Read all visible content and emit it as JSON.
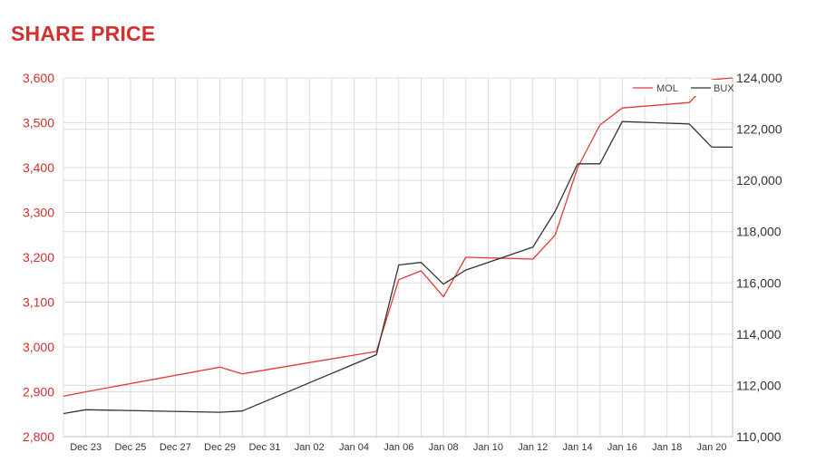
{
  "header": {
    "title": "SHARE PRICE"
  },
  "colors": {
    "title": "#d32f2f",
    "mol": "#e53935",
    "bux": "#333333"
  },
  "chart_data": {
    "type": "line",
    "title": "SHARE PRICE",
    "grid": true,
    "legend_placement": "top-right",
    "x_ticks": [
      "Dec 23",
      "Dec 25",
      "Dec 27",
      "Dec 29",
      "Dec 31",
      "Jan 02",
      "Jan 04",
      "Jan 06",
      "Jan 08",
      "Jan 10",
      "Jan 12",
      "Jan 14",
      "Jan 16",
      "Jan 18",
      "Jan 20"
    ],
    "x_range": [
      "2021-12-22",
      "2022-01-20"
    ],
    "y_left": {
      "range": [
        2800,
        3600
      ],
      "ticks": [
        "2,800",
        "2,900",
        "3,000",
        "3,100",
        "3,200",
        "3,300",
        "3,400",
        "3,500",
        "3,600"
      ]
    },
    "y_right": {
      "range": [
        110000,
        124000
      ],
      "ticks": [
        "110,000",
        "112,000",
        "114,000",
        "116,000",
        "118,000",
        "120,000",
        "122,000",
        "124,000"
      ]
    },
    "series": [
      {
        "name": "MOL",
        "axis": "left",
        "x": [
          "2021-12-22",
          "2021-12-23",
          "2021-12-29",
          "2021-12-30",
          "2022-01-05",
          "2022-01-06",
          "2022-01-07",
          "2022-01-08",
          "2022-01-09",
          "2022-01-12",
          "2022-01-13",
          "2022-01-14",
          "2022-01-15",
          "2022-01-16",
          "2022-01-19",
          "2022-01-20"
        ],
        "values": [
          2890,
          2900,
          2955,
          2940,
          2990,
          3150,
          3170,
          3112,
          3200,
          3196,
          3250,
          3400,
          3495,
          3533,
          3545,
          3596
        ]
      },
      {
        "name": "BUX",
        "axis": "right",
        "x": [
          "2021-12-22",
          "2021-12-23",
          "2021-12-29",
          "2021-12-30",
          "2022-01-05",
          "2022-01-06",
          "2022-01-07",
          "2022-01-08",
          "2022-01-09",
          "2022-01-12",
          "2022-01-13",
          "2022-01-14",
          "2022-01-15",
          "2022-01-16",
          "2022-01-19",
          "2022-01-20"
        ],
        "values": [
          110900,
          111050,
          110950,
          111000,
          113200,
          116700,
          116800,
          115950,
          116500,
          117400,
          118800,
          120650,
          120650,
          122300,
          122200,
          121300
        ]
      }
    ]
  }
}
